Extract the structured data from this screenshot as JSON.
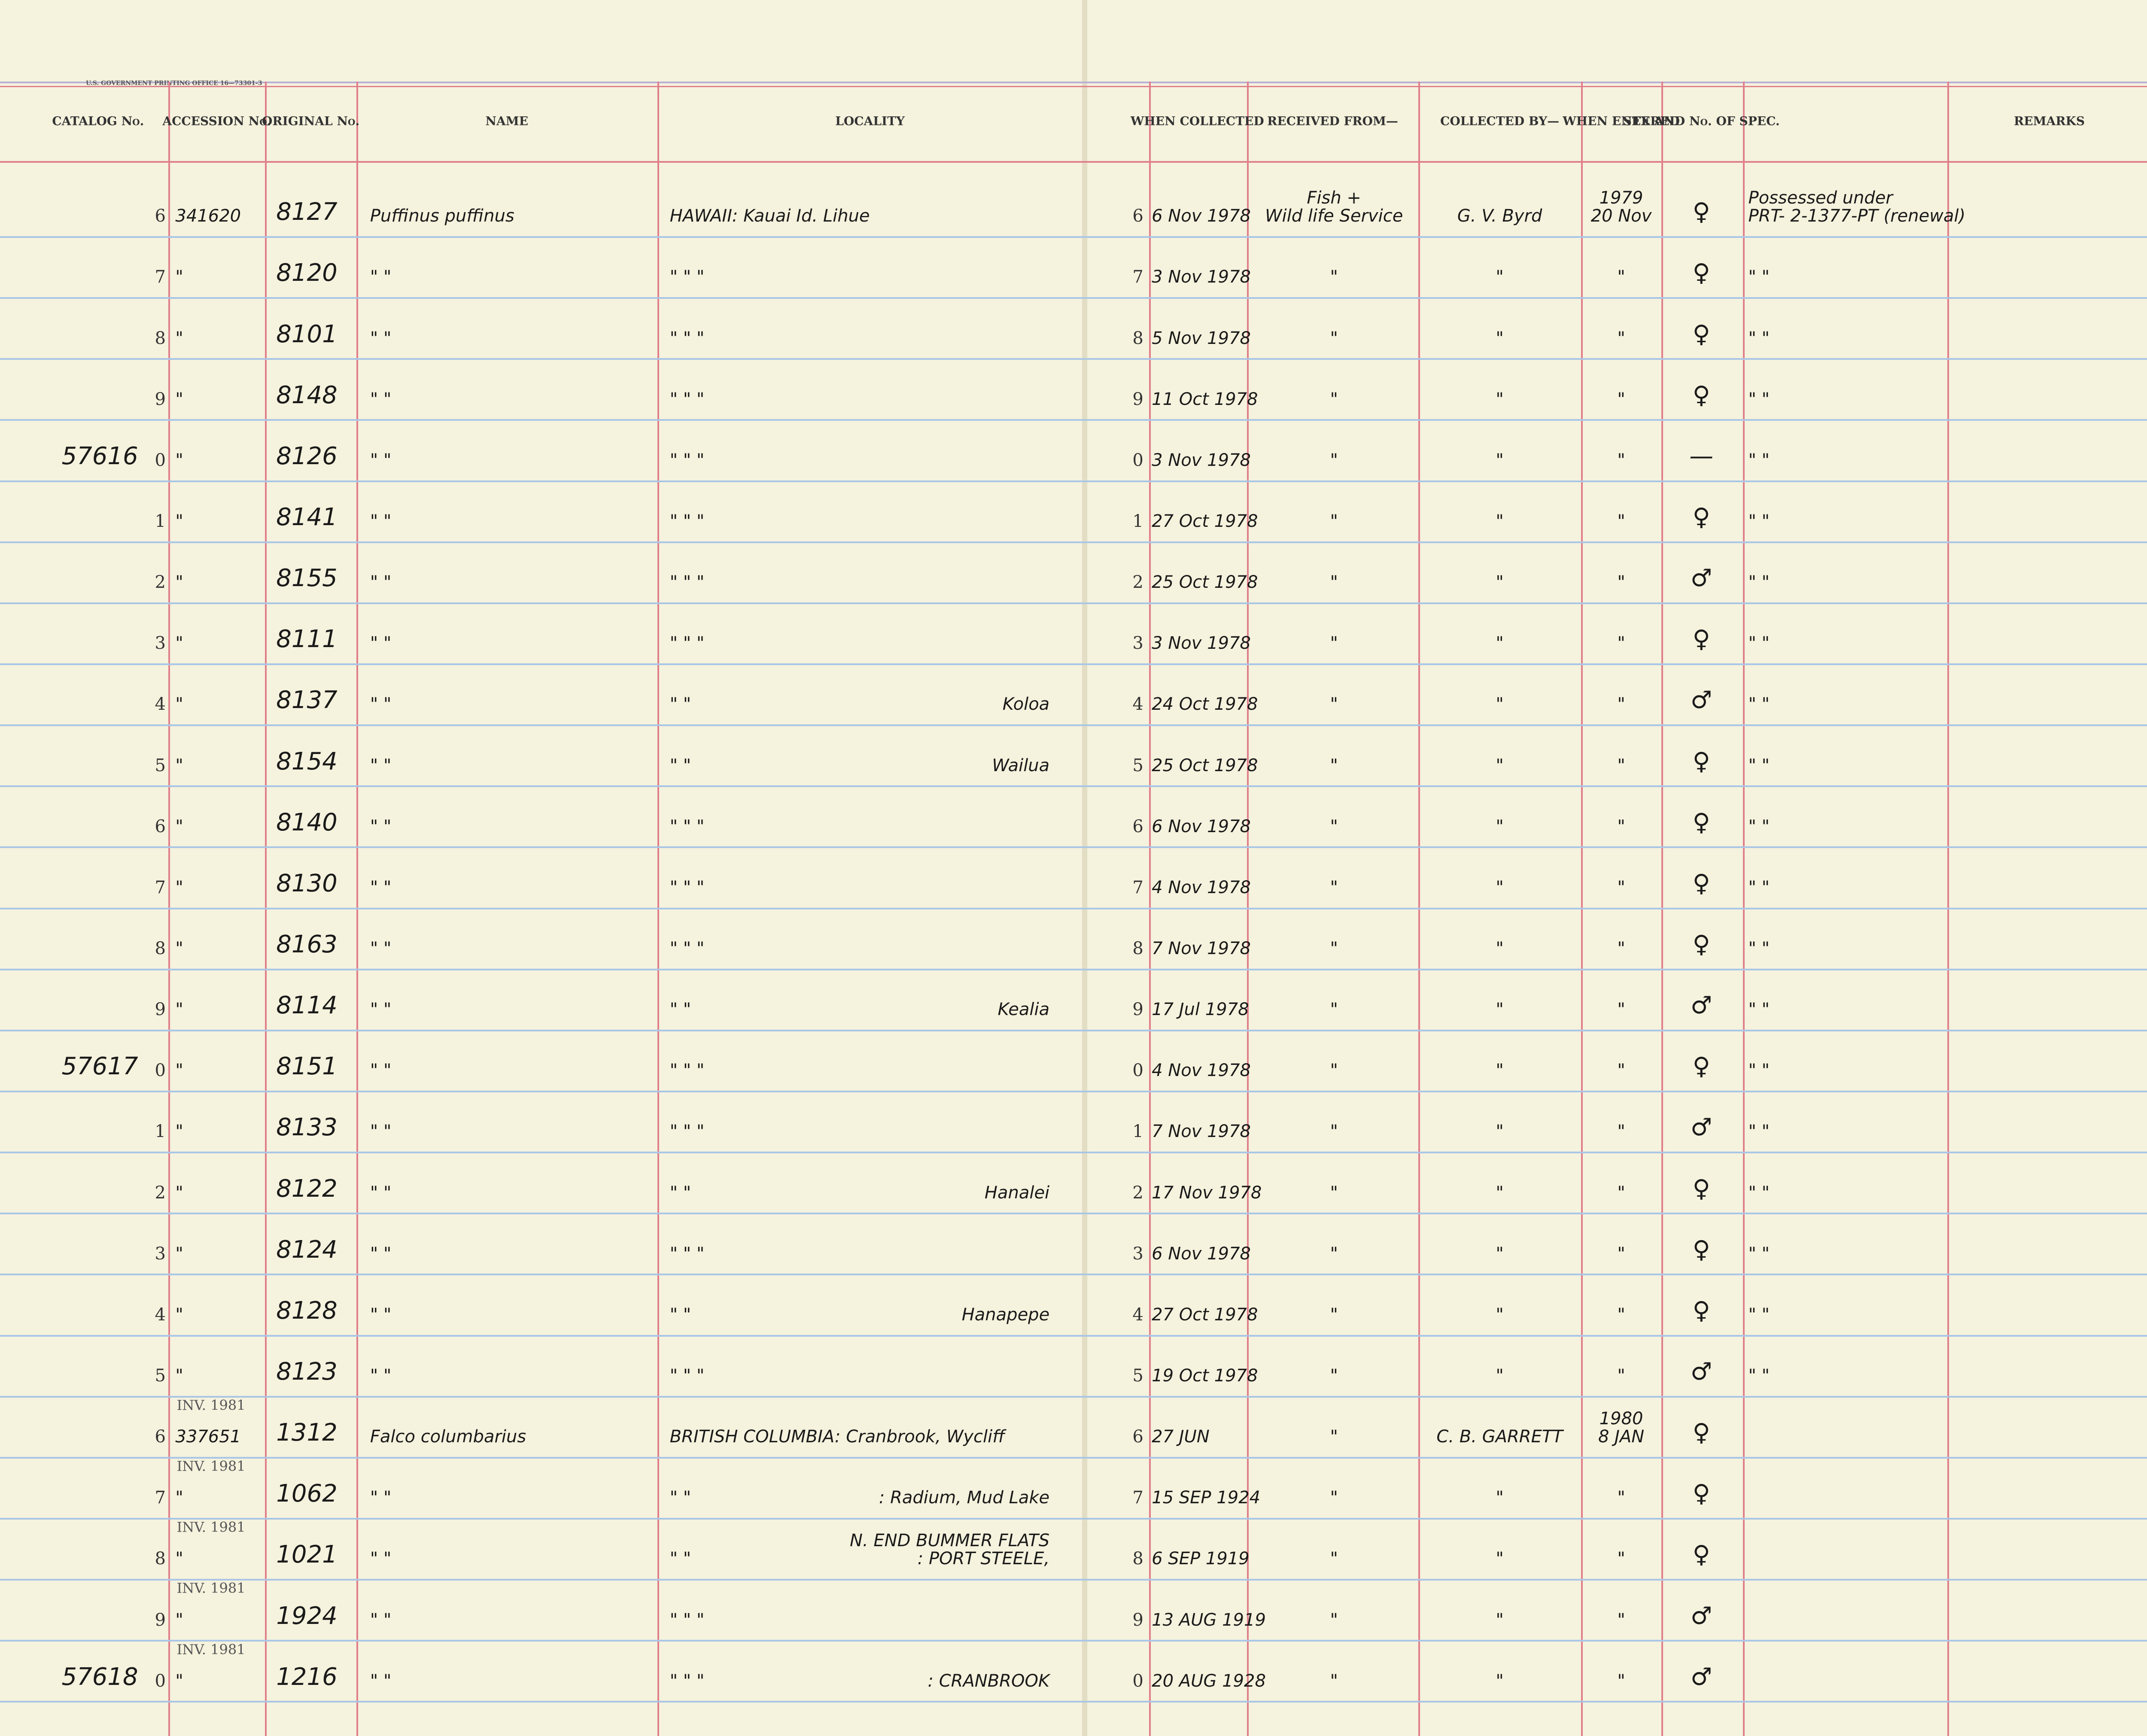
{
  "header": {
    "printer": "U.S. GOVERNMENT PRINTING OFFICE   16—73301-3",
    "columns": [
      "CATALOG\nNo.",
      "ACCESSION\nNo.",
      "ORIGINAL\nNo.",
      "NAME",
      "LOCALITY",
      "WHEN\nCOLLECTED",
      "RECEIVED FROM—",
      "COLLECTED BY—",
      "WHEN\nENTERED",
      "SEX AND\nNo. OF\nSPEC.",
      "REMARKS"
    ]
  },
  "rows": [
    {
      "n": "6",
      "acc": "341620",
      "orig": "8127",
      "name": "Puffinus   puffinus",
      "loc": "HAWAII:  Kauai Id.   Lihue",
      "cn": "6",
      "date": "6 Nov 1978",
      "recv": "Fish +\nWild life Service",
      "coll": "G. V. Byrd",
      "ent": "1979\n20 Nov",
      "sex": "♀",
      "rem": "Possessed under\nPRT- 2-1377-PT (renewal)"
    },
    {
      "n": "7",
      "acc": "\"",
      "orig": "8120",
      "name": "\"          \"",
      "loc": "\"          \"          \"",
      "cn": "7",
      "date": "3 Nov 1978",
      "recv": "\"",
      "coll": "\"",
      "ent": "\"",
      "sex": "♀",
      "rem": "\"          \""
    },
    {
      "n": "8",
      "acc": "\"",
      "orig": "8101",
      "name": "\"          \"",
      "loc": "\"          \"          \"",
      "cn": "8",
      "date": "5 Nov 1978",
      "recv": "\"",
      "coll": "\"",
      "ent": "\"",
      "sex": "♀",
      "rem": "\"          \""
    },
    {
      "n": "9",
      "acc": "\"",
      "orig": "8148",
      "name": "\"          \"",
      "loc": "\"          \"          \"",
      "cn": "9",
      "date": "11 Oct 1978",
      "recv": "\"",
      "coll": "\"",
      "ent": "\"",
      "sex": "♀",
      "rem": "\"          \""
    },
    {
      "cat": "57616",
      "n": "0",
      "acc": "\"",
      "orig": "8126",
      "name": "\"          \"",
      "loc": "\"          \"          \"",
      "cn": "0",
      "date": "3 Nov 1978",
      "recv": "\"",
      "coll": "\"",
      "ent": "\"",
      "sex": "—",
      "rem": "\"          \""
    },
    {
      "n": "1",
      "acc": "\"",
      "orig": "8141",
      "name": "\"          \"",
      "loc": "\"          \"          \"",
      "cn": "1",
      "date": "27 Oct 1978",
      "recv": "\"",
      "coll": "\"",
      "ent": "\"",
      "sex": "♀",
      "rem": "\"          \""
    },
    {
      "n": "2",
      "acc": "\"",
      "orig": "8155",
      "name": "\"          \"",
      "loc": "\"          \"          \"",
      "cn": "2",
      "date": "25 Oct 1978",
      "recv": "\"",
      "coll": "\"",
      "ent": "\"",
      "sex": "♂",
      "rem": "\"          \""
    },
    {
      "n": "3",
      "acc": "\"",
      "orig": "8111",
      "name": "\"          \"",
      "loc": "\"          \"          \"",
      "cn": "3",
      "date": "3 Nov 1978",
      "recv": "\"",
      "coll": "\"",
      "ent": "\"",
      "sex": "♀",
      "rem": "\"          \""
    },
    {
      "n": "4",
      "acc": "\"",
      "orig": "8137",
      "name": "\"          \"",
      "loc": "\"          \"",
      "locr": "Koloa",
      "cn": "4",
      "date": "24 Oct 1978",
      "recv": "\"",
      "coll": "\"",
      "ent": "\"",
      "sex": "♂",
      "rem": "\"          \""
    },
    {
      "n": "5",
      "acc": "\"",
      "orig": "8154",
      "name": "\"          \"",
      "loc": "\"          \"",
      "locr": "Wailua",
      "cn": "5",
      "date": "25 Oct 1978",
      "recv": "\"",
      "coll": "\"",
      "ent": "\"",
      "sex": "♀",
      "rem": "\"          \""
    },
    {
      "n": "6",
      "acc": "\"",
      "orig": "8140",
      "name": "\"          \"",
      "loc": "\"          \"          \"",
      "cn": "6",
      "date": "6 Nov 1978",
      "recv": "\"",
      "coll": "\"",
      "ent": "\"",
      "sex": "♀",
      "rem": "\"          \""
    },
    {
      "n": "7",
      "acc": "\"",
      "orig": "8130",
      "name": "\"          \"",
      "loc": "\"          \"          \"",
      "cn": "7",
      "date": "4 Nov 1978",
      "recv": "\"",
      "coll": "\"",
      "ent": "\"",
      "sex": "♀",
      "rem": "\"          \""
    },
    {
      "n": "8",
      "acc": "\"",
      "orig": "8163",
      "name": "\"          \"",
      "loc": "\"          \"          \"",
      "cn": "8",
      "date": "7 Nov 1978",
      "recv": "\"",
      "coll": "\"",
      "ent": "\"",
      "sex": "♀",
      "rem": "\"          \""
    },
    {
      "n": "9",
      "acc": "\"",
      "orig": "8114",
      "name": "\"          \"",
      "loc": "\"          \"",
      "locr": "Kealia",
      "cn": "9",
      "date": "17 Jul 1978",
      "recv": "\"",
      "coll": "\"",
      "ent": "\"",
      "sex": "♂",
      "rem": "\"          \""
    },
    {
      "cat": "57617",
      "n": "0",
      "acc": "\"",
      "orig": "8151",
      "name": "\"          \"",
      "loc": "\"          \"          \"",
      "cn": "0",
      "date": "4 Nov 1978",
      "recv": "\"",
      "coll": "\"",
      "ent": "\"",
      "sex": "♀",
      "rem": "\"          \""
    },
    {
      "n": "1",
      "acc": "\"",
      "orig": "8133",
      "name": "\"          \"",
      "loc": "\"          \"          \"",
      "cn": "1",
      "date": "7 Nov 1978",
      "recv": "\"",
      "coll": "\"",
      "ent": "\"",
      "sex": "♂",
      "rem": "\"          \""
    },
    {
      "n": "2",
      "acc": "\"",
      "orig": "8122",
      "name": "\"          \"",
      "loc": "\"          \"",
      "locr": "Hanalei",
      "cn": "2",
      "date": "17 Nov 1978",
      "recv": "\"",
      "coll": "\"",
      "ent": "\"",
      "sex": "♀",
      "rem": "\"          \""
    },
    {
      "n": "3",
      "acc": "\"",
      "orig": "8124",
      "name": "\"          \"",
      "loc": "\"          \"          \"",
      "cn": "3",
      "date": "6 Nov 1978",
      "recv": "\"",
      "coll": "\"",
      "ent": "\"",
      "sex": "♀",
      "rem": "\"          \""
    },
    {
      "n": "4",
      "acc": "\"",
      "orig": "8128",
      "name": "\"          \"",
      "loc": "\"          \"",
      "locr": "Hanapepe",
      "cn": "4",
      "date": "27 Oct 1978",
      "recv": "\"",
      "coll": "\"",
      "ent": "\"",
      "sex": "♀",
      "rem": "\"          \""
    },
    {
      "n": "5",
      "acc": "\"",
      "orig": "8123",
      "name": "\"          \"",
      "loc": "\"          \"          \"",
      "cn": "5",
      "date": "19 Oct 1978",
      "recv": "\"",
      "coll": "\"",
      "ent": "\"",
      "sex": "♂",
      "rem": "\"          \""
    },
    {
      "note": "INV. 1981",
      "n": "6",
      "acc": "337651",
      "orig": "1312",
      "name": "Falco  columbarius",
      "loc": "BRITISH COLUMBIA: Cranbrook, Wycliff",
      "cn": "6",
      "date": "27 JUN",
      "recv": "\"",
      "coll": "C. B. GARRETT",
      "ent": "1980\n8 JAN",
      "sex": "♀"
    },
    {
      "note": "INV. 1981",
      "n": "7",
      "acc": "\"",
      "orig": "1062",
      "name": "\"          \"",
      "loc": "\"          \"",
      "locr": ": Radium, Mud Lake",
      "cn": "7",
      "date": "15 SEP 1924",
      "recv": "\"",
      "coll": "\"",
      "ent": "\"",
      "sex": "♀"
    },
    {
      "note": "INV. 1981",
      "n": "8",
      "acc": "\"",
      "orig": "1021",
      "name": "\"          \"",
      "loc": "\"          \"",
      "locr": "N. END BUMMER FLATS\n: PORT STEELE,",
      "cn": "8",
      "date": "6 SEP 1919",
      "recv": "\"",
      "coll": "\"",
      "ent": "\"",
      "sex": "♀"
    },
    {
      "note": "INV. 1981",
      "n": "9",
      "acc": "\"",
      "orig": "1924",
      "name": "\"          \"",
      "loc": "\"          \"          \"",
      "cn": "9",
      "date": "13 AUG 1919",
      "recv": "\"",
      "coll": "\"",
      "ent": "\"",
      "sex": "♂"
    },
    {
      "note": "INV. 1981",
      "cat": "57618",
      "n": "0",
      "acc": "\"",
      "orig": "1216",
      "name": "\"          \"",
      "loc": "\"          \"          \"",
      "locr": ": CRANBROOK",
      "cn": "0",
      "date": "20 AUG 1928",
      "recv": "\"",
      "coll": "\"",
      "ent": "\"",
      "sex": "♂"
    }
  ]
}
